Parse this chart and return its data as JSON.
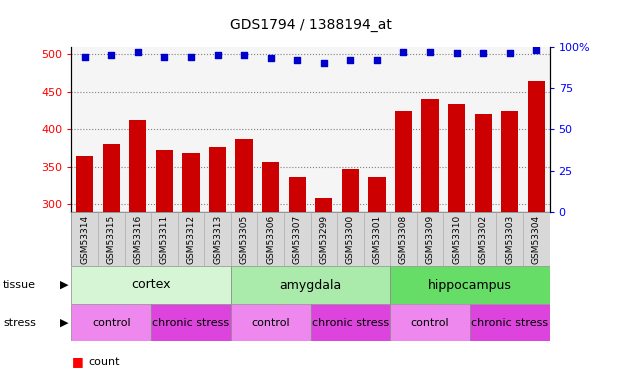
{
  "title": "GDS1794 / 1388194_at",
  "samples": [
    "GSM53314",
    "GSM53315",
    "GSM53316",
    "GSM53311",
    "GSM53312",
    "GSM53313",
    "GSM53305",
    "GSM53306",
    "GSM53307",
    "GSM53299",
    "GSM53300",
    "GSM53301",
    "GSM53308",
    "GSM53309",
    "GSM53310",
    "GSM53302",
    "GSM53303",
    "GSM53304"
  ],
  "counts": [
    365,
    380,
    412,
    372,
    368,
    376,
    387,
    357,
    336,
    308,
    347,
    337,
    424,
    440,
    434,
    420,
    425,
    465
  ],
  "percentiles": [
    94,
    95,
    97,
    94,
    94,
    95,
    95,
    93,
    92,
    90,
    92,
    92,
    97,
    97,
    96,
    96,
    96,
    98
  ],
  "tissue_groups": [
    {
      "label": "cortex",
      "start": 0,
      "end": 6,
      "color": "#d5f5d5"
    },
    {
      "label": "amygdala",
      "start": 6,
      "end": 12,
      "color": "#aaeaaa"
    },
    {
      "label": "hippocampus",
      "start": 12,
      "end": 18,
      "color": "#66dd66"
    }
  ],
  "stress_groups": [
    {
      "label": "control",
      "start": 0,
      "end": 3,
      "color": "#ee88ee"
    },
    {
      "label": "chronic stress",
      "start": 3,
      "end": 6,
      "color": "#dd44dd"
    },
    {
      "label": "control",
      "start": 6,
      "end": 9,
      "color": "#ee88ee"
    },
    {
      "label": "chronic stress",
      "start": 9,
      "end": 12,
      "color": "#dd44dd"
    },
    {
      "label": "control",
      "start": 12,
      "end": 15,
      "color": "#ee88ee"
    },
    {
      "label": "chronic stress",
      "start": 15,
      "end": 18,
      "color": "#dd44dd"
    }
  ],
  "bar_color": "#cc0000",
  "dot_color": "#0000cc",
  "ylim_left": [
    290,
    510
  ],
  "ylim_right": [
    0,
    100
  ],
  "yticks_left": [
    300,
    350,
    400,
    450,
    500
  ],
  "yticks_right": [
    0,
    25,
    50,
    75,
    100
  ],
  "bar_bottom": 290,
  "background_color": "#ffffff",
  "plot_bg_color": "#f5f5f5",
  "xticklabel_bg": "#d8d8d8"
}
